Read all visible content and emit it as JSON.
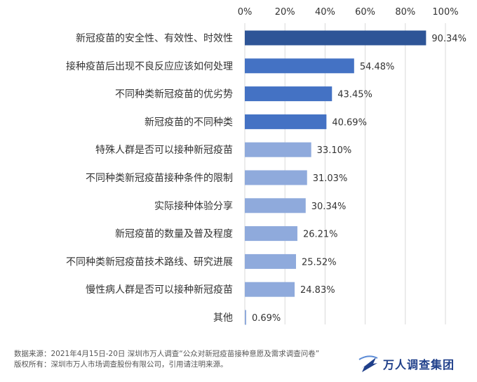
{
  "chart_data": {
    "type": "bar",
    "orientation": "horizontal",
    "categories": [
      "新冠疫苗的安全性、有效性、时效性",
      "接种疫苗后出现不良反应应该如何处理",
      "不同种类新冠疫苗的优劣势",
      "新冠疫苗的不同种类",
      "特殊人群是否可以接种新冠疫苗",
      "不同种类新冠疫苗接种条件的限制",
      "实际接种体验分享",
      "新冠疫苗的数量及普及程度",
      "不同种类新冠疫苗技术路线、研究进展",
      "慢性病人群是否可以接种新冠疫苗",
      "其他"
    ],
    "values": [
      90.34,
      54.48,
      43.45,
      40.69,
      33.1,
      31.03,
      30.34,
      26.21,
      25.52,
      24.83,
      0.69
    ],
    "value_labels": [
      "90.34%",
      "54.48%",
      "43.45%",
      "40.69%",
      "33.10%",
      "31.03%",
      "30.34%",
      "26.21%",
      "25.52%",
      "24.83%",
      "0.69%"
    ],
    "xlim": [
      0,
      100
    ],
    "ticks": [
      "0%",
      "20%",
      "40%",
      "60%",
      "80%",
      "100%"
    ],
    "tick_position": "top",
    "grid": true,
    "colors": {
      "top": "#2e5597",
      "mid": "#4472c4",
      "low": "#8faadc",
      "grid": "#d9d9d9",
      "label": "#333333"
    },
    "bar_color_groups": [
      "top",
      "mid",
      "mid",
      "mid",
      "low",
      "low",
      "low",
      "low",
      "low",
      "low",
      "low"
    ]
  },
  "footer": {
    "source": "数据来源：2021年4月15日-20日 深圳市万人调查“公众对新冠疫苗接种意愿及需求调查问卷”",
    "copyright": "版权所有：深圳市万人市场调查股份有限公司，引用请注明来源。"
  },
  "logo": {
    "text": "万人调查集团",
    "icon": "wanren-logo-icon",
    "color": "#1f3f8a"
  }
}
